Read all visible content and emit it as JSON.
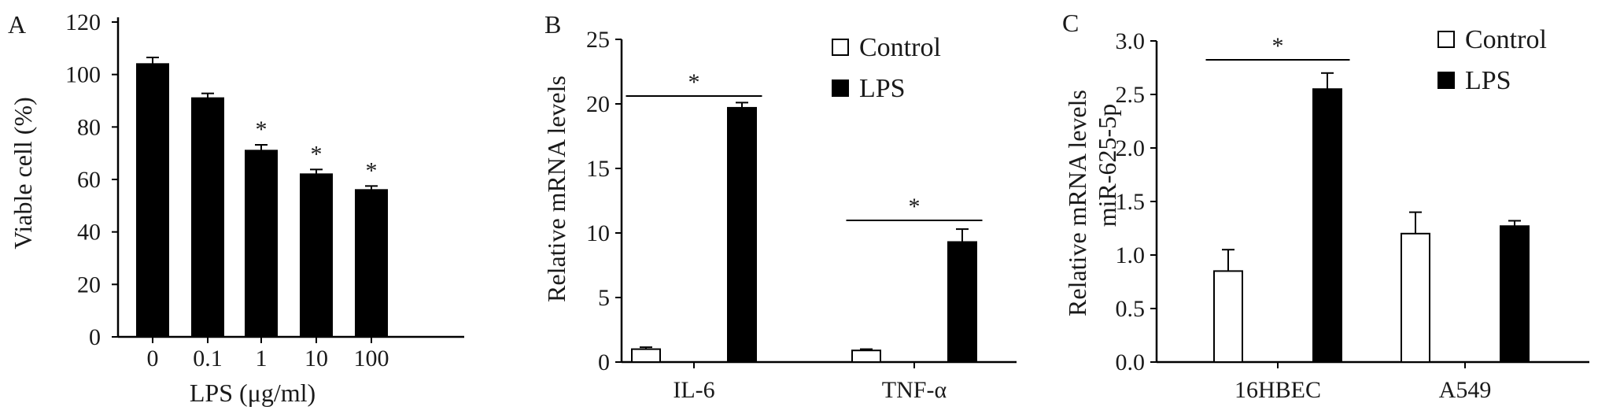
{
  "chart_data": [
    {
      "panel": "A",
      "type": "bar",
      "xlabel": "LPS (μg/ml)",
      "ylabel": "Viable cell (%)",
      "ylim": [
        0,
        120
      ],
      "yticks": [
        0,
        20,
        40,
        60,
        80,
        100,
        120
      ],
      "categories": [
        "0",
        "0.1",
        "1",
        "10",
        "100"
      ],
      "series": [
        {
          "values": [
            104,
            91,
            71,
            62,
            56
          ],
          "errors": [
            2.5,
            1.8,
            2.2,
            1.8,
            1.5
          ],
          "fill": "#000000"
        }
      ],
      "annotations": [
        "",
        "",
        "*",
        "*",
        "*"
      ]
    },
    {
      "panel": "B",
      "type": "bar",
      "xlabel": "",
      "ylabel": "Relative  mRNA levels",
      "ylim": [
        0,
        25
      ],
      "yticks": [
        0,
        5,
        10,
        15,
        20,
        25
      ],
      "categories": [
        "IL-6",
        "TNF-α"
      ],
      "series": [
        {
          "name": "Control",
          "values": [
            1.0,
            0.9
          ],
          "errors": [
            0.15,
            0.1
          ],
          "fill": "#ffffff"
        },
        {
          "name": "LPS",
          "values": [
            19.7,
            9.3
          ],
          "errors": [
            0.4,
            1.0
          ],
          "fill": "#000000"
        }
      ],
      "legend": "top-right",
      "significance": [
        "*",
        "*"
      ]
    },
    {
      "panel": "C",
      "type": "bar",
      "xlabel": "",
      "ylabel": "Relative  mRNA levels",
      "ylabel2": "miR-625-5p",
      "ylim": [
        0,
        3.0
      ],
      "yticks": [
        "0.0",
        "0.5",
        "1.0",
        "1.5",
        "2.0",
        "2.5",
        "3.0"
      ],
      "categories": [
        "16HBEC",
        "A549"
      ],
      "series": [
        {
          "name": "Control",
          "values": [
            0.85,
            1.2
          ],
          "errors": [
            0.2,
            0.2
          ],
          "fill": "#ffffff"
        },
        {
          "name": "LPS",
          "values": [
            2.55,
            1.27
          ],
          "errors": [
            0.15,
            0.05
          ],
          "fill": "#000000"
        }
      ],
      "legend": "top-right",
      "significance": [
        "*",
        ""
      ]
    }
  ]
}
